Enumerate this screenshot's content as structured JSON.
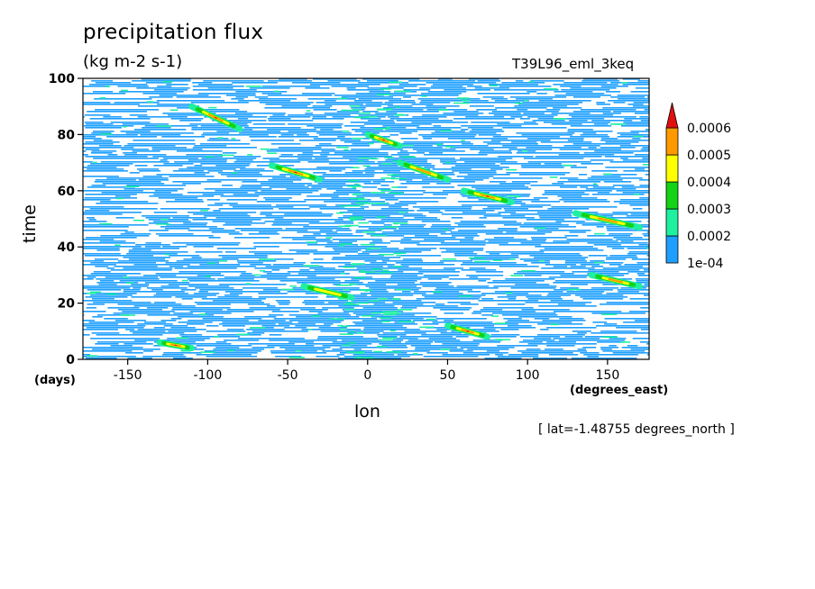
{
  "chart_data": {
    "type": "heatmap",
    "title": "precipitation flux",
    "units": "(kg m-2 s-1)",
    "run_label": "T39L96_eml_3keq",
    "xlabel": "lon",
    "x_unit": "(degrees_east)",
    "ylabel": "time",
    "y_unit": "(days)",
    "annotation": "[ lat=-1.48755 degrees_north ]",
    "xlim": [
      -178,
      176
    ],
    "ylim": [
      0,
      100
    ],
    "x_ticks": [
      -150,
      -100,
      -50,
      0,
      50,
      100,
      150
    ],
    "x_tick_labels": [
      "-150",
      "-100",
      "-50",
      "0",
      "50",
      "100",
      "150"
    ],
    "y_ticks": [
      0,
      20,
      40,
      60,
      80,
      100
    ],
    "y_tick_labels": [
      "0",
      "20",
      "40",
      "60",
      "80",
      "100"
    ],
    "colorbar": {
      "levels": [
        0.0001,
        0.0002,
        0.0003,
        0.0004,
        0.0005,
        0.0006
      ],
      "labels": [
        "1e-04",
        "0.0002",
        "0.0003",
        "0.0004",
        "0.0005",
        "0.0006"
      ],
      "colors": [
        "#ffffff",
        "#1e9fff",
        "#1ef0a0",
        "#14d214",
        "#ffff00",
        "#ff9900",
        "#e01010"
      ],
      "extend": "max"
    },
    "features": [
      {
        "kind": "enhanced-band",
        "lon_range": [
          -20,
          20
        ],
        "time_range": [
          0,
          100
        ],
        "level": 0.0002
      },
      {
        "kind": "eastward-streak",
        "lon": [
          -130,
          -110
        ],
        "time": [
          6,
          4
        ],
        "peak": 0.0006
      },
      {
        "kind": "eastward-streak",
        "lon": [
          -110,
          -80
        ],
        "time": [
          90,
          82
        ],
        "peak": 0.0006
      },
      {
        "kind": "eastward-streak",
        "lon": [
          -60,
          -30
        ],
        "time": [
          69,
          64
        ],
        "peak": 0.0005
      },
      {
        "kind": "eastward-streak",
        "lon": [
          0,
          20
        ],
        "time": [
          80,
          76
        ],
        "peak": 0.0005
      },
      {
        "kind": "eastward-streak",
        "lon": [
          20,
          50
        ],
        "time": [
          70,
          64
        ],
        "peak": 0.0004
      },
      {
        "kind": "eastward-streak",
        "lon": [
          60,
          90
        ],
        "time": [
          60,
          56
        ],
        "peak": 0.0005
      },
      {
        "kind": "eastward-streak",
        "lon": [
          130,
          170
        ],
        "time": [
          52,
          47
        ],
        "peak": 0.0004
      },
      {
        "kind": "eastward-streak",
        "lon": [
          50,
          75
        ],
        "time": [
          12,
          8
        ],
        "peak": 0.0005
      },
      {
        "kind": "eastward-streak",
        "lon": [
          140,
          170
        ],
        "time": [
          30,
          26
        ],
        "peak": 0.0004
      },
      {
        "kind": "eastward-streak",
        "lon": [
          -40,
          -10
        ],
        "time": [
          26,
          22
        ],
        "peak": 0.0003
      }
    ]
  }
}
